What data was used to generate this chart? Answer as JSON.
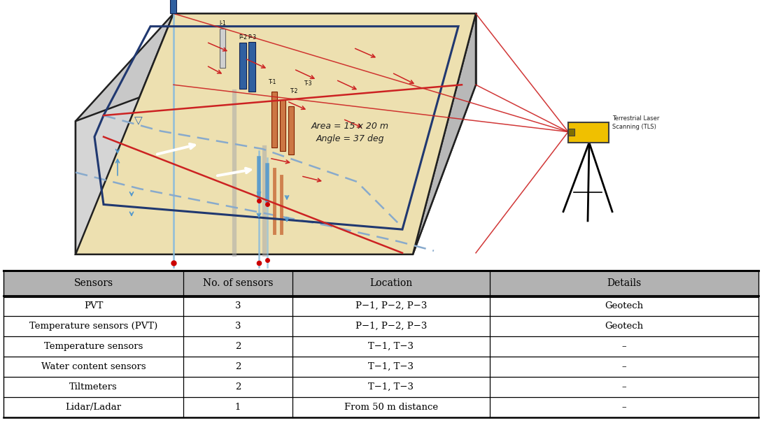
{
  "table_headers": [
    "Sensors",
    "No. of sensors",
    "Location",
    "Details"
  ],
  "table_rows": [
    [
      "PVT",
      "3",
      "P−1, P−2, P−3",
      "Geotech"
    ],
    [
      "Temperature sensors (PVT)",
      "3",
      "P−1, P−2, P−3",
      "Geotech"
    ],
    [
      "Temperature sensors",
      "2",
      "T−1, T−3",
      "–"
    ],
    [
      "Water content sensors",
      "2",
      "T−1, T−3",
      "–"
    ],
    [
      "Tiltmeters",
      "2",
      "T−1, T−3",
      "–"
    ],
    [
      "Lidar/Ladar",
      "1",
      "From 50 m distance",
      "–"
    ]
  ],
  "header_bg": "#b2b2b2",
  "sand_color": "#ede0b0",
  "sand_top_color": "#ddd0a0",
  "gray_left": "#c8c8c8",
  "gray_bottom": "#d5d5d5",
  "gray_right": "#b8b8b8",
  "blue_fail": "#203870",
  "blue_water": "#88aacc",
  "blue_sensor": "#3060a0",
  "red_arrow": "#cc2222",
  "orange_sensor": "#c06030",
  "tls_yellow": "#f0c000",
  "area_text_1": "Area = 15 x 20 m",
  "area_text_2": "Angle = 37 deg",
  "tls_text": "Terrestrial Laser\nScanning (TLS)"
}
